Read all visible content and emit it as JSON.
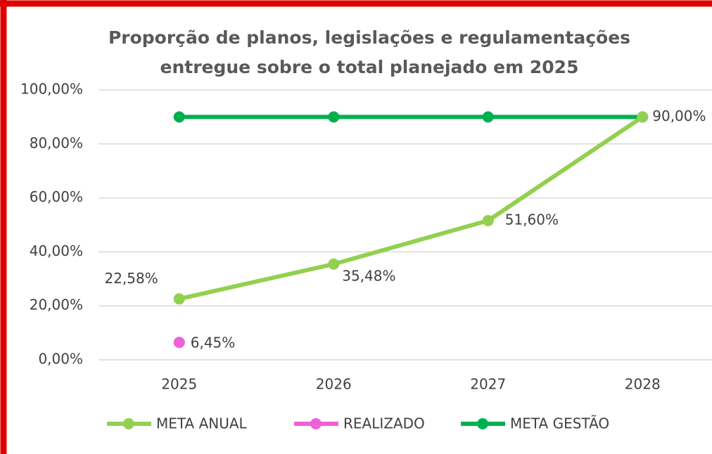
{
  "chart_data": {
    "type": "line",
    "title": [
      "Proporção de planos, legislações e regulamentações",
      "entregue sobre o total planejado em 2025"
    ],
    "categories": [
      "2025",
      "2026",
      "2027",
      "2028"
    ],
    "series": [
      {
        "name": "META ANUAL",
        "color": "#92d050",
        "values": [
          22.58,
          35.48,
          51.6,
          90
        ],
        "value_labels": [
          "22,58%",
          "35,48%",
          "51,60%",
          "90,00%"
        ]
      },
      {
        "name": "REALIZADO",
        "color": "#f060d8",
        "values": [
          6.45,
          null,
          null,
          null
        ],
        "value_labels": [
          "6,45%",
          null,
          null,
          null
        ]
      },
      {
        "name": "META GESTÃO",
        "color": "#00b050",
        "values": [
          90,
          90,
          90,
          90
        ]
      }
    ],
    "ylim": [
      0,
      100
    ],
    "yticks": [
      {
        "value": 0,
        "label": "0,00%"
      },
      {
        "value": 20,
        "label": "20,00%"
      },
      {
        "value": 40,
        "label": "40,00%"
      },
      {
        "value": 60,
        "label": "60,00%"
      },
      {
        "value": 80,
        "label": "80,00%"
      },
      {
        "value": 100,
        "label": "100,00%"
      }
    ],
    "grid": true,
    "legend": "bottom"
  }
}
